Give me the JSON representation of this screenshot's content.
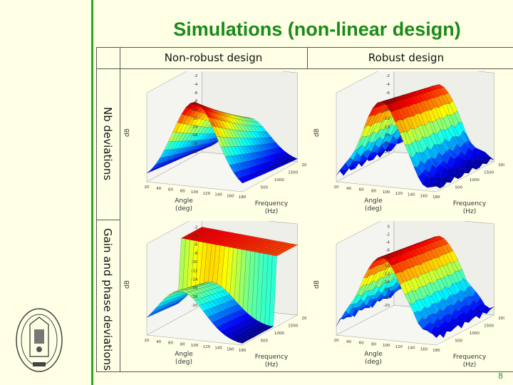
{
  "slide": {
    "title": "Simulations (non-linear design)",
    "page_number": "8",
    "colors": {
      "accent": "#22aa22",
      "title": "#1a8a1a",
      "background": "#ffffe6"
    }
  },
  "columns": [
    "Non-robust design",
    "Robust design"
  ],
  "rows": [
    "Nb deviations",
    "Gain and phase deviations"
  ],
  "plots": [
    {
      "id": "nonrobust-nodev",
      "zlabel": "dB",
      "xlabel": "Angle\n(deg)",
      "ylabel": "Frequency\n(Hz)",
      "zticks": [
        "0",
        "-2",
        "-4",
        "-6",
        "-8",
        "-10",
        "-12",
        "-14",
        "-16",
        "-18",
        "-20"
      ],
      "angle_ticks": [
        "20",
        "40",
        "60",
        "80",
        "100",
        "120",
        "140",
        "160",
        "180"
      ],
      "freq_ticks": [
        "500",
        "1000",
        "1500",
        "2000"
      ]
    },
    {
      "id": "robust-nodev",
      "zlabel": "dB",
      "xlabel": "Angle\n(deg)",
      "ylabel": "Frequency\n(Hz)",
      "zticks": [
        "0",
        "-2",
        "-4",
        "-6",
        "-8",
        "-10",
        "-12",
        "-14",
        "-16",
        "-18",
        "-20"
      ],
      "angle_ticks": [
        "20",
        "40",
        "60",
        "80",
        "100",
        "120",
        "140",
        "160",
        "180"
      ],
      "freq_ticks": [
        "500",
        "1000",
        "1500",
        "2000"
      ]
    },
    {
      "id": "nonrobust-gainphase",
      "zlabel": "dB",
      "xlabel": "Angle\n(deg)",
      "ylabel": "Frequency\n(Hz)",
      "zticks": [
        "0",
        "-2",
        "-4",
        "-6",
        "-8",
        "-10",
        "-12",
        "-14",
        "-16",
        "-18",
        "-20"
      ],
      "angle_ticks": [
        "20",
        "40",
        "60",
        "80",
        "100",
        "120",
        "140",
        "160",
        "180"
      ],
      "freq_ticks": [
        "500",
        "1000",
        "1500",
        "2000"
      ]
    },
    {
      "id": "robust-gainphase",
      "zlabel": "dB",
      "xlabel": "Angle\n(deg)",
      "ylabel": "Frequency\n(Hz)",
      "zticks": [
        "2",
        "0",
        "-2",
        "-4",
        "-6",
        "-8",
        "-10",
        "-12",
        "-14",
        "-16",
        "-18",
        "-20"
      ],
      "angle_ticks": [
        "20",
        "40",
        "60",
        "80",
        "100",
        "120",
        "140",
        "160",
        "180"
      ],
      "freq_ticks": [
        "500",
        "1000",
        "1500",
        "2000"
      ]
    }
  ]
}
